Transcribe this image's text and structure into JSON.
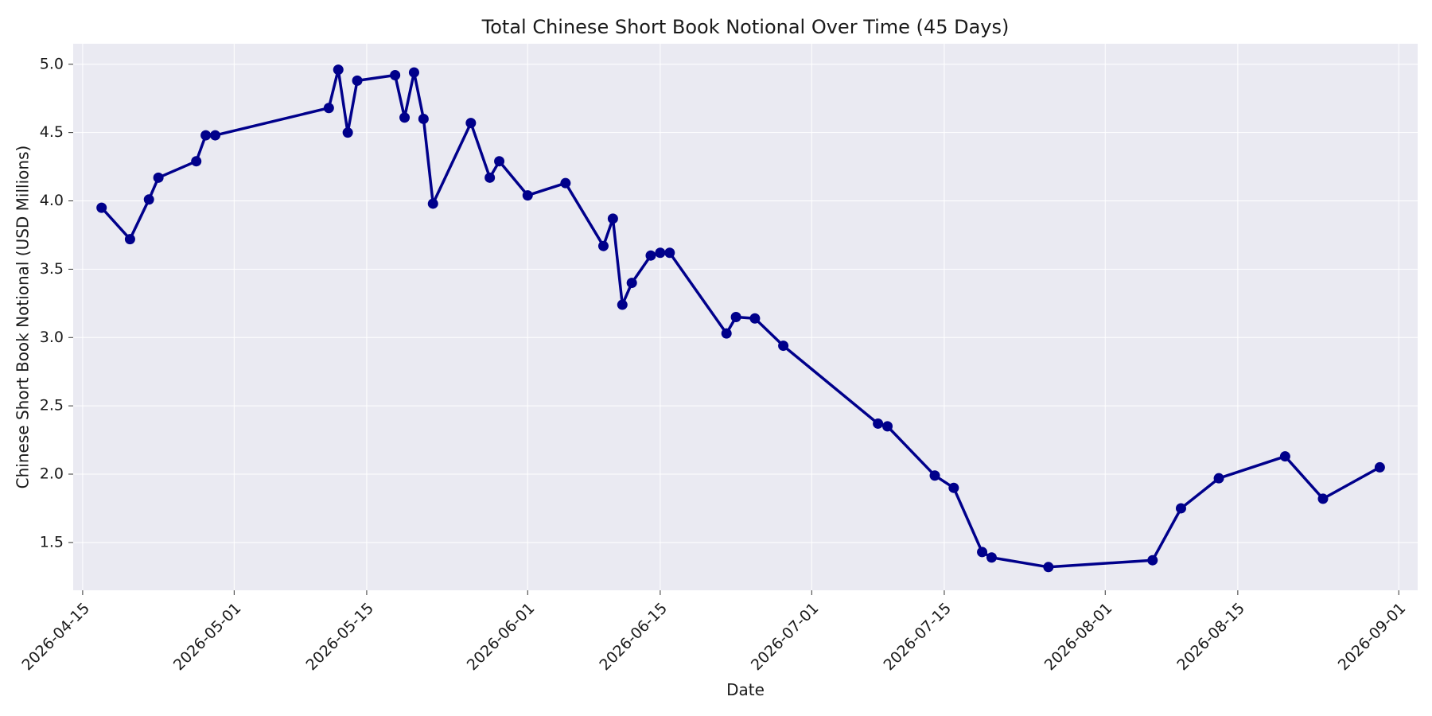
{
  "chart_data": {
    "type": "line",
    "title": "Total Chinese Short Book Notional Over Time (45 Days)",
    "xlabel": "Date",
    "ylabel": "Chinese Short Book Notional (USD Millions)",
    "xlim": [
      "2026-04-14",
      "2026-09-03"
    ],
    "ylim": [
      1.15,
      5.15
    ],
    "x_ticks": [
      "2026-04-15",
      "2026-05-01",
      "2026-05-15",
      "2026-06-01",
      "2026-06-15",
      "2026-07-01",
      "2026-07-15",
      "2026-08-01",
      "2026-08-15",
      "2026-09-01"
    ],
    "y_ticks": [
      "1.5",
      "2.0",
      "2.5",
      "3.0",
      "3.5",
      "4.0",
      "4.5",
      "5.0"
    ],
    "grid": true,
    "colors": {
      "line": "#00008b",
      "plot_background": "#eaeaf2",
      "grid": "#ffffff"
    },
    "series": [
      {
        "x": [
          "2026-04-17",
          "2026-04-20",
          "2026-04-22",
          "2026-04-23",
          "2026-04-27",
          "2026-04-28",
          "2026-04-29",
          "2026-05-11",
          "2026-05-12",
          "2026-05-13",
          "2026-05-14",
          "2026-05-18",
          "2026-05-19",
          "2026-05-20",
          "2026-05-21",
          "2026-05-22",
          "2026-05-26",
          "2026-05-28",
          "2026-05-29",
          "2026-06-01",
          "2026-06-05",
          "2026-06-09",
          "2026-06-10",
          "2026-06-11",
          "2026-06-12",
          "2026-06-14",
          "2026-06-15",
          "2026-06-16",
          "2026-06-22",
          "2026-06-23",
          "2026-06-25",
          "2026-06-28",
          "2026-07-08",
          "2026-07-09",
          "2026-07-14",
          "2026-07-16",
          "2026-07-19",
          "2026-07-20",
          "2026-07-26",
          "2026-08-06",
          "2026-08-09",
          "2026-08-13",
          "2026-08-20",
          "2026-08-24",
          "2026-08-30"
        ],
        "values": [
          3.95,
          3.72,
          4.01,
          4.17,
          4.29,
          4.48,
          4.48,
          4.68,
          4.96,
          4.5,
          4.88,
          4.92,
          4.61,
          4.94,
          4.6,
          3.98,
          4.57,
          4.17,
          4.29,
          4.04,
          4.13,
          3.67,
          3.87,
          3.24,
          3.4,
          3.6,
          3.62,
          3.62,
          3.03,
          3.15,
          3.14,
          2.94,
          2.37,
          2.35,
          1.99,
          1.9,
          1.43,
          1.39,
          1.32,
          1.37,
          1.75,
          1.97,
          2.13,
          1.82,
          2.05
        ]
      }
    ]
  }
}
